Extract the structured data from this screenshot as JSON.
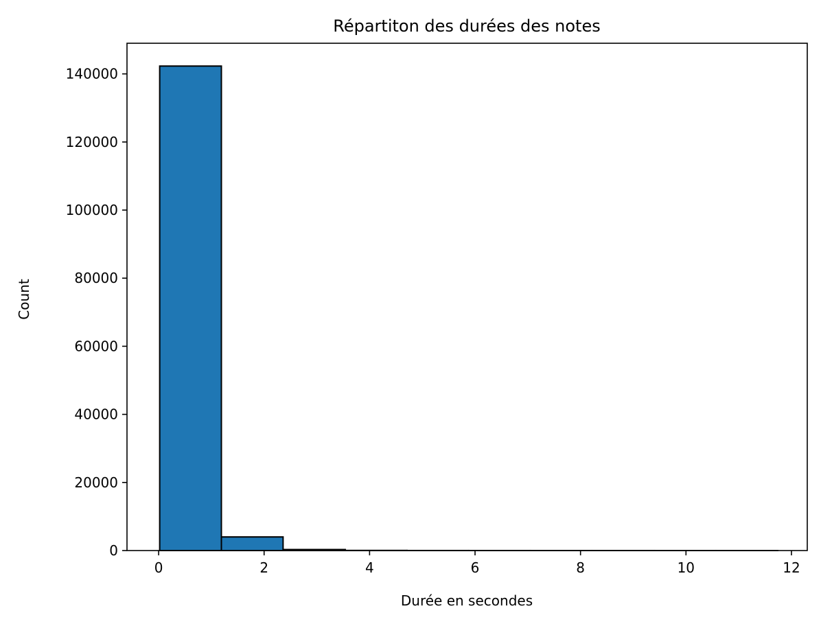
{
  "chart_data": {
    "type": "bar",
    "title": "Répartiton des durées des notes",
    "xlabel": "Durée en secondes",
    "ylabel": "Count",
    "xlim": [
      -0.6,
      12.3
    ],
    "ylim": [
      0,
      149000
    ],
    "x_ticks": [
      0,
      2,
      4,
      6,
      8,
      10,
      12
    ],
    "y_ticks": [
      0,
      20000,
      40000,
      60000,
      80000,
      100000,
      120000,
      140000
    ],
    "bins": [
      {
        "x0": 0.02,
        "x1": 1.19,
        "count": 142300
      },
      {
        "x0": 1.19,
        "x1": 2.36,
        "count": 4000
      },
      {
        "x0": 2.36,
        "x1": 3.54,
        "count": 300
      },
      {
        "x0": 3.54,
        "x1": 4.71,
        "count": 40
      },
      {
        "x0": 4.71,
        "x1": 5.88,
        "count": 10
      },
      {
        "x0": 5.88,
        "x1": 7.05,
        "count": 5
      },
      {
        "x0": 7.05,
        "x1": 8.22,
        "count": 3
      },
      {
        "x0": 8.22,
        "x1": 9.4,
        "count": 2
      },
      {
        "x0": 9.4,
        "x1": 10.57,
        "count": 1
      },
      {
        "x0": 10.57,
        "x1": 11.74,
        "count": 1
      }
    ],
    "bar_color": "#1f77b4",
    "edge_color": "#000000",
    "grid": false,
    "legend": "none"
  }
}
